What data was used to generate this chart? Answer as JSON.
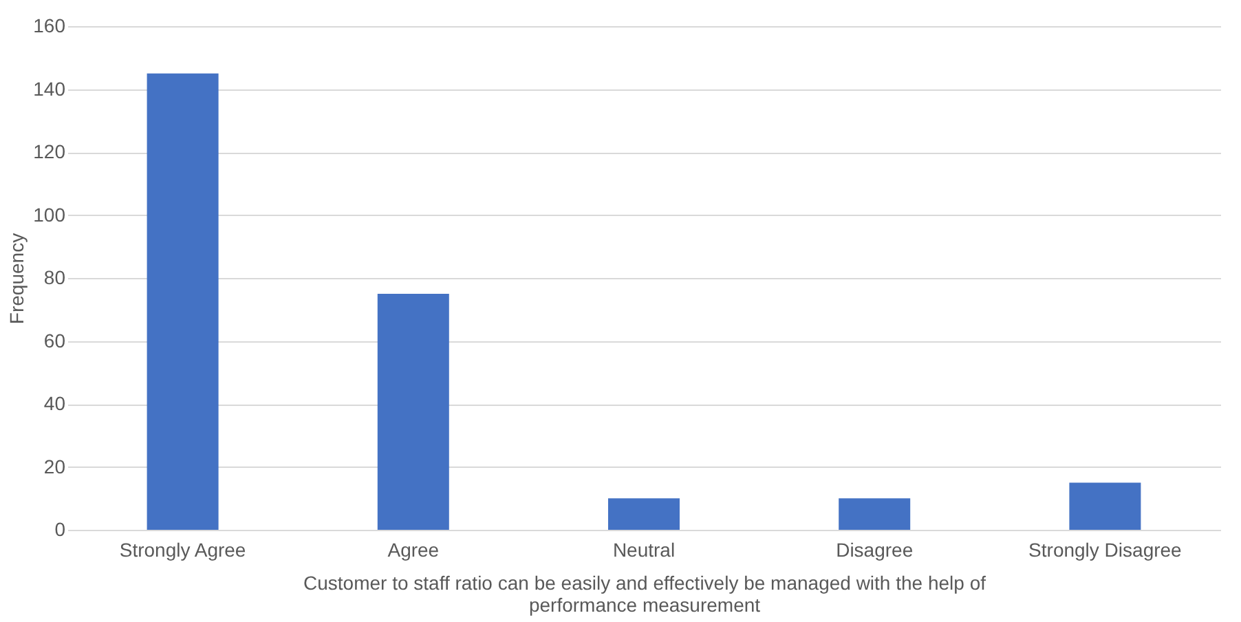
{
  "chart_data": {
    "type": "bar",
    "categories": [
      "Strongly Agree",
      "Agree",
      "Neutral",
      "Disagree",
      "Strongly Disagree"
    ],
    "values": [
      145,
      75,
      10,
      10,
      15
    ],
    "color": "#4472c4",
    "xlabel": "Customer to staff ratio can be easily and effectively be managed with the help of performance measurement",
    "ylabel": "Frequency",
    "ylim": [
      0,
      160
    ],
    "yticks": [
      0,
      20,
      40,
      60,
      80,
      100,
      120,
      140,
      160
    ],
    "grid": "y"
  }
}
